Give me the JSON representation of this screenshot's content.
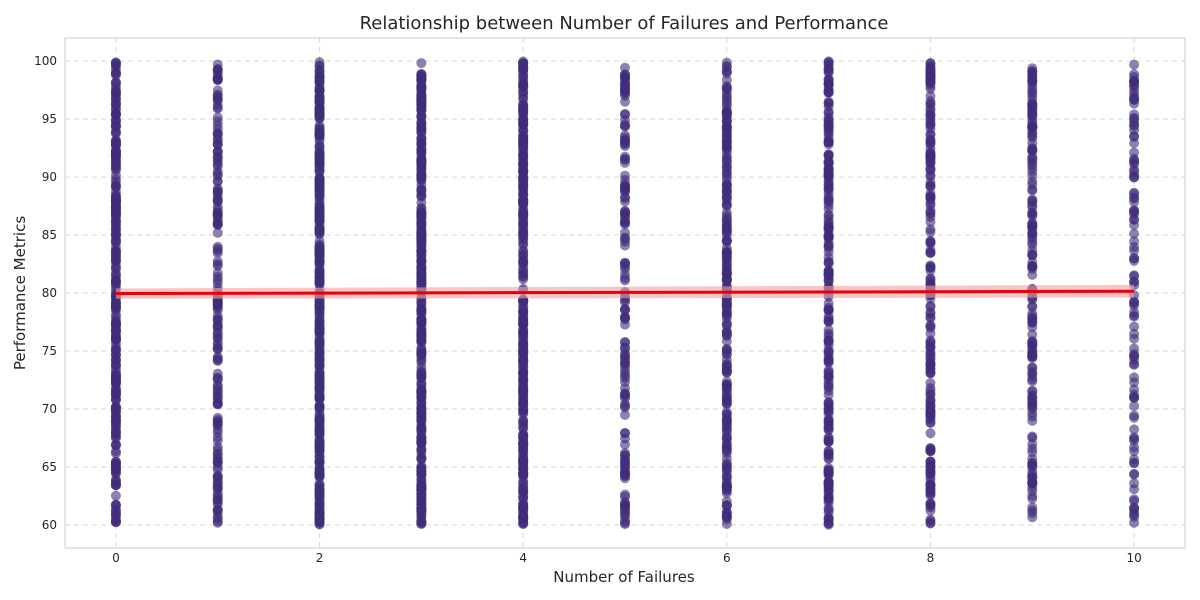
{
  "chart_data": {
    "type": "scatter",
    "title": "Relationship between Number of Failures and Performance",
    "xlabel": "Number of Failures",
    "ylabel": "Performance Metrics",
    "xlim": [
      -0.5,
      10.5
    ],
    "ylim": [
      58,
      102
    ],
    "xticks": [
      0,
      2,
      4,
      6,
      8,
      10
    ],
    "yticks": [
      60,
      65,
      70,
      75,
      80,
      85,
      90,
      95,
      100
    ],
    "grid": true,
    "point_color": "#3f2d7a",
    "series": [
      {
        "kind": "points",
        "x_categories": [
          0,
          1,
          2,
          3,
          4,
          5,
          6,
          7,
          8,
          9,
          10
        ],
        "y_range": [
          60,
          100
        ],
        "points_per_x": [
          300,
          180,
          380,
          380,
          360,
          150,
          240,
          240,
          210,
          180,
          110
        ]
      },
      {
        "kind": "regression",
        "color": "#e8000b",
        "band_color": "#f4a0a0",
        "x": [
          0,
          10
        ],
        "y": [
          79.95,
          80.15
        ],
        "ci_halfwidth": [
          0.45,
          0.55
        ]
      }
    ]
  }
}
